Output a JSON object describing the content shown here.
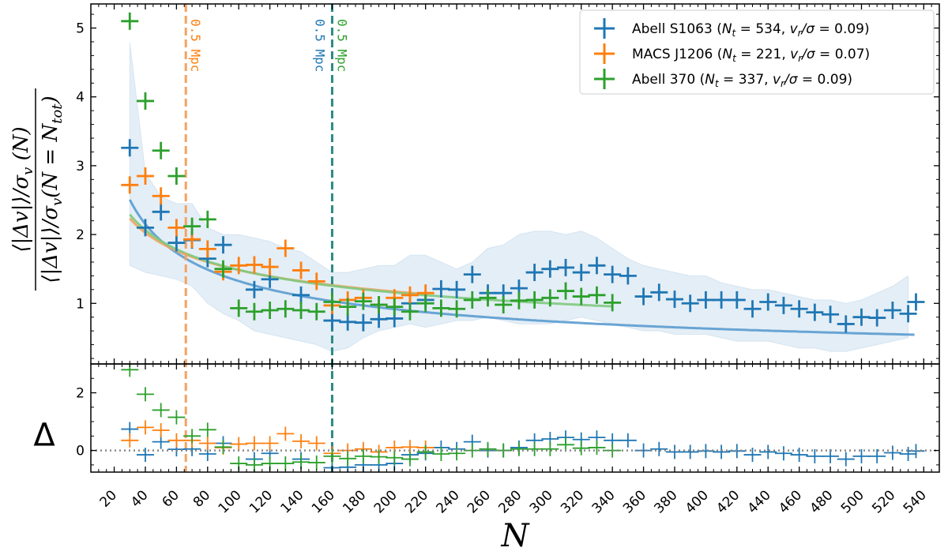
{
  "chart_data": {
    "type": "scatter",
    "xlabel": "N",
    "ylabel_top": {
      "numerator": "⟨|Δv|⟩/σ",
      "numerator_sub": "v",
      "numerator_tail": " (N)",
      "denominator": "⟨|Δv|⟩/σ",
      "denominator_sub": "v",
      "denominator_tail": "(N = N",
      "denominator_tail_sub": "tot",
      "denominator_end": ")"
    },
    "ylabel_bottom": "Δ",
    "xlim": [
      5,
      550
    ],
    "ylim_top": [
      0.12,
      5.35
    ],
    "ylim_bottom": [
      -0.75,
      3.0
    ],
    "x_ticks": [
      20,
      40,
      60,
      80,
      100,
      120,
      140,
      160,
      180,
      200,
      220,
      240,
      260,
      280,
      300,
      320,
      340,
      360,
      380,
      400,
      420,
      440,
      460,
      480,
      500,
      520,
      540
    ],
    "x_tick_labels": [
      "20",
      "40",
      "60",
      "80",
      "100",
      "120",
      "140",
      "160",
      "180",
      "200",
      "220",
      "240",
      "260",
      "280",
      "300",
      "320",
      "340",
      "360",
      "380",
      "400",
      "420",
      "440",
      "460",
      "480",
      "500",
      "520",
      "540"
    ],
    "y_ticks_top": [
      1,
      2,
      3,
      4,
      5
    ],
    "y_tick_labels_top": [
      "1",
      "2",
      "3",
      "4",
      "5"
    ],
    "y_ticks_bottom": [
      0,
      2
    ],
    "y_tick_labels_bottom": [
      "0",
      "2"
    ],
    "reference_line_bottom": 0,
    "band": {
      "x": [
        30,
        40,
        50,
        60,
        70,
        80,
        90,
        100,
        110,
        120,
        130,
        140,
        150,
        160,
        170,
        180,
        190,
        200,
        210,
        220,
        230,
        240,
        250,
        260,
        270,
        280,
        290,
        300,
        310,
        320,
        330,
        340,
        350,
        360,
        370,
        380,
        390,
        400,
        410,
        420,
        430,
        440,
        450,
        460,
        470,
        480,
        490,
        500,
        510,
        520,
        530
      ],
      "upper": [
        4.8,
        2.9,
        2.55,
        2.45,
        2.45,
        2.1,
        2.0,
        2.0,
        1.95,
        1.9,
        1.8,
        1.75,
        1.6,
        1.45,
        1.45,
        1.5,
        1.55,
        1.55,
        1.7,
        1.7,
        1.6,
        1.5,
        1.6,
        1.8,
        1.85,
        2.0,
        2.05,
        2.05,
        2.0,
        2.05,
        1.95,
        1.8,
        1.65,
        1.55,
        1.5,
        1.45,
        1.4,
        1.4,
        1.3,
        1.25,
        1.2,
        1.2,
        1.15,
        1.1,
        1.05,
        1.05,
        1.0,
        1.05,
        1.15,
        1.25,
        1.4
      ],
      "lower": [
        1.55,
        1.45,
        1.4,
        1.35,
        1.25,
        1.0,
        0.85,
        0.75,
        0.6,
        0.55,
        0.5,
        0.45,
        0.4,
        0.3,
        0.35,
        0.5,
        0.6,
        0.65,
        0.7,
        0.65,
        0.7,
        0.75,
        0.75,
        0.8,
        0.75,
        0.7,
        0.7,
        0.7,
        0.75,
        0.8,
        0.75,
        0.7,
        0.65,
        0.6,
        0.6,
        0.55,
        0.55,
        0.55,
        0.5,
        0.45,
        0.45,
        0.45,
        0.4,
        0.35,
        0.35,
        0.3,
        0.3,
        0.35,
        0.4,
        0.45,
        0.5
      ]
    },
    "series": [
      {
        "name": "Abell S1063",
        "legend_prefix": "Abell S1063 (",
        "Nt": "534",
        "ratio": "0.09",
        "color": "#1f77b4",
        "fit_color": "#5a9bd0",
        "points": [
          [
            30,
            3.26
          ],
          [
            40,
            2.1
          ],
          [
            50,
            2.33
          ],
          [
            60,
            1.88
          ],
          [
            70,
            1.92
          ],
          [
            80,
            1.65
          ],
          [
            90,
            1.85
          ],
          [
            110,
            1.2
          ],
          [
            120,
            1.35
          ],
          [
            140,
            1.12
          ],
          [
            160,
            0.75
          ],
          [
            170,
            0.73
          ],
          [
            180,
            0.72
          ],
          [
            190,
            0.77
          ],
          [
            200,
            0.78
          ],
          [
            210,
            1.0
          ],
          [
            220,
            1.05
          ],
          [
            230,
            1.21
          ],
          [
            240,
            1.2
          ],
          [
            250,
            1.42
          ],
          [
            260,
            1.15
          ],
          [
            270,
            1.15
          ],
          [
            280,
            1.22
          ],
          [
            290,
            1.45
          ],
          [
            300,
            1.5
          ],
          [
            310,
            1.52
          ],
          [
            320,
            1.45
          ],
          [
            330,
            1.55
          ],
          [
            340,
            1.42
          ],
          [
            350,
            1.4
          ],
          [
            360,
            1.1
          ],
          [
            370,
            1.16
          ],
          [
            380,
            1.06
          ],
          [
            390,
            1.0
          ],
          [
            400,
            1.05
          ],
          [
            410,
            1.05
          ],
          [
            420,
            1.05
          ],
          [
            430,
            0.92
          ],
          [
            440,
            1.02
          ],
          [
            450,
            0.97
          ],
          [
            460,
            0.92
          ],
          [
            470,
            0.87
          ],
          [
            480,
            0.84
          ],
          [
            490,
            0.7
          ],
          [
            500,
            0.8
          ],
          [
            510,
            0.79
          ],
          [
            520,
            0.9
          ],
          [
            530,
            0.85
          ],
          [
            535,
            1.02
          ]
        ],
        "delta": [
          [
            30,
            0.74
          ],
          [
            40,
            -0.15
          ],
          [
            50,
            0.3
          ],
          [
            60,
            0.04
          ],
          [
            70,
            0.05
          ],
          [
            80,
            -0.12
          ],
          [
            90,
            0.25
          ],
          [
            110,
            -0.3
          ],
          [
            120,
            -0.1
          ],
          [
            140,
            -0.3
          ],
          [
            160,
            -0.6
          ],
          [
            170,
            -0.58
          ],
          [
            180,
            -0.5
          ],
          [
            190,
            -0.5
          ],
          [
            200,
            -0.45
          ],
          [
            210,
            -0.15
          ],
          [
            220,
            -0.1
          ],
          [
            230,
            0.1
          ],
          [
            240,
            0.05
          ],
          [
            250,
            0.3
          ],
          [
            260,
            0.0
          ],
          [
            270,
            0.0
          ],
          [
            280,
            0.1
          ],
          [
            290,
            0.35
          ],
          [
            300,
            0.4
          ],
          [
            310,
            0.45
          ],
          [
            320,
            0.38
          ],
          [
            330,
            0.45
          ],
          [
            340,
            0.35
          ],
          [
            350,
            0.35
          ],
          [
            360,
            0.0
          ],
          [
            370,
            0.05
          ],
          [
            380,
            -0.05
          ],
          [
            390,
            -0.05
          ],
          [
            400,
            -0.02
          ],
          [
            410,
            -0.05
          ],
          [
            420,
            -0.02
          ],
          [
            430,
            -0.15
          ],
          [
            440,
            -0.05
          ],
          [
            450,
            -0.1
          ],
          [
            460,
            -0.15
          ],
          [
            470,
            -0.2
          ],
          [
            480,
            -0.2
          ],
          [
            490,
            -0.3
          ],
          [
            500,
            -0.2
          ],
          [
            510,
            -0.2
          ],
          [
            520,
            -0.08
          ],
          [
            530,
            -0.12
          ],
          [
            535,
            -0.02
          ]
        ],
        "fit": {
          "a": 15.2,
          "alpha": 0.53
        }
      },
      {
        "name": "MACS J1206",
        "legend_prefix": "MACS J1206 (",
        "Nt": "221",
        "ratio": "0.07",
        "color": "#ff7f0e",
        "fit_color": "#f4a261",
        "points": [
          [
            30,
            2.72
          ],
          [
            40,
            2.85
          ],
          [
            50,
            2.56
          ],
          [
            60,
            2.1
          ],
          [
            70,
            1.93
          ],
          [
            80,
            1.79
          ],
          [
            90,
            1.46
          ],
          [
            100,
            1.55
          ],
          [
            110,
            1.56
          ],
          [
            120,
            1.53
          ],
          [
            130,
            1.8
          ],
          [
            140,
            1.48
          ],
          [
            150,
            1.32
          ],
          [
            160,
            0.97
          ],
          [
            170,
            1.05
          ],
          [
            180,
            1.08
          ],
          [
            190,
            0.98
          ],
          [
            200,
            1.08
          ],
          [
            210,
            1.12
          ],
          [
            220,
            1.15
          ]
        ],
        "delta": [
          [
            30,
            0.35
          ],
          [
            40,
            0.8
          ],
          [
            50,
            0.7
          ],
          [
            60,
            0.35
          ],
          [
            70,
            0.35
          ],
          [
            80,
            0.25
          ],
          [
            90,
            0.1
          ],
          [
            100,
            0.22
          ],
          [
            110,
            0.25
          ],
          [
            120,
            0.25
          ],
          [
            130,
            0.58
          ],
          [
            140,
            0.32
          ],
          [
            150,
            0.25
          ],
          [
            160,
            -0.1
          ],
          [
            170,
            0.0
          ],
          [
            180,
            0.05
          ],
          [
            190,
            -0.05
          ],
          [
            200,
            0.1
          ],
          [
            210,
            0.12
          ],
          [
            220,
            0.1
          ]
        ],
        "fit": {
          "a": 7.1,
          "alpha": 0.34
        }
      },
      {
        "name": "Abell 370",
        "legend_prefix": "Abell 370 (",
        "Nt": "337",
        "ratio": "0.09",
        "color": "#2ca02c",
        "fit_color": "#7fc97f",
        "points": [
          [
            30,
            5.1
          ],
          [
            40,
            3.94
          ],
          [
            50,
            3.22
          ],
          [
            60,
            2.85
          ],
          [
            70,
            2.12
          ],
          [
            80,
            2.22
          ],
          [
            90,
            1.5
          ],
          [
            100,
            0.93
          ],
          [
            110,
            0.88
          ],
          [
            120,
            0.9
          ],
          [
            130,
            0.92
          ],
          [
            140,
            0.9
          ],
          [
            150,
            0.88
          ],
          [
            160,
            1.02
          ],
          [
            170,
            0.95
          ],
          [
            180,
            1.03
          ],
          [
            190,
            0.98
          ],
          [
            200,
            0.95
          ],
          [
            210,
            0.88
          ],
          [
            220,
            1.0
          ],
          [
            230,
            0.93
          ],
          [
            240,
            0.92
          ],
          [
            250,
            1.05
          ],
          [
            260,
            1.08
          ],
          [
            270,
            0.98
          ],
          [
            280,
            1.04
          ],
          [
            290,
            1.05
          ],
          [
            300,
            1.08
          ],
          [
            310,
            1.18
          ],
          [
            320,
            1.1
          ],
          [
            330,
            1.12
          ],
          [
            340,
            1.01
          ]
        ],
        "delta": [
          [
            30,
            2.8
          ],
          [
            40,
            1.95
          ],
          [
            50,
            1.4
          ],
          [
            60,
            1.15
          ],
          [
            70,
            0.5
          ],
          [
            80,
            0.72
          ],
          [
            90,
            0.12
          ],
          [
            100,
            -0.45
          ],
          [
            110,
            -0.5
          ],
          [
            120,
            -0.45
          ],
          [
            130,
            -0.45
          ],
          [
            140,
            -0.4
          ],
          [
            150,
            -0.42
          ],
          [
            160,
            -0.2
          ],
          [
            170,
            -0.28
          ],
          [
            180,
            -0.2
          ],
          [
            190,
            -0.22
          ],
          [
            200,
            -0.25
          ],
          [
            210,
            -0.3
          ],
          [
            220,
            -0.05
          ],
          [
            230,
            -0.12
          ],
          [
            240,
            -0.1
          ],
          [
            250,
            0.0
          ],
          [
            260,
            0.05
          ],
          [
            270,
            0.0
          ],
          [
            280,
            0.05
          ],
          [
            290,
            0.05
          ],
          [
            300,
            0.05
          ],
          [
            310,
            0.2
          ],
          [
            320,
            0.08
          ],
          [
            330,
            0.1
          ],
          [
            340,
            0.0
          ]
        ],
        "fit": {
          "a": 7.8,
          "alpha": 0.36
        }
      }
    ],
    "vlines": [
      {
        "x": 66,
        "color": "#f4a261",
        "label": "0.5 Mpc",
        "label_color": "#ff7f0e",
        "side": "right"
      },
      {
        "x": 160,
        "color": "#2b8a83",
        "label": "0.5 Mpc",
        "label_color": "#1f77b4",
        "side": "left"
      },
      {
        "x": 160,
        "color": "#2b8a83",
        "label": "0.5 Mpc",
        "label_color": "#2ca02c",
        "side": "right"
      }
    ],
    "legend": {
      "position": "top-right",
      "nt_symbol": "N",
      "nt_sub": "t",
      "ratio_symbol": "v",
      "ratio_sub": "r",
      "ratio_den": "/σ"
    }
  }
}
